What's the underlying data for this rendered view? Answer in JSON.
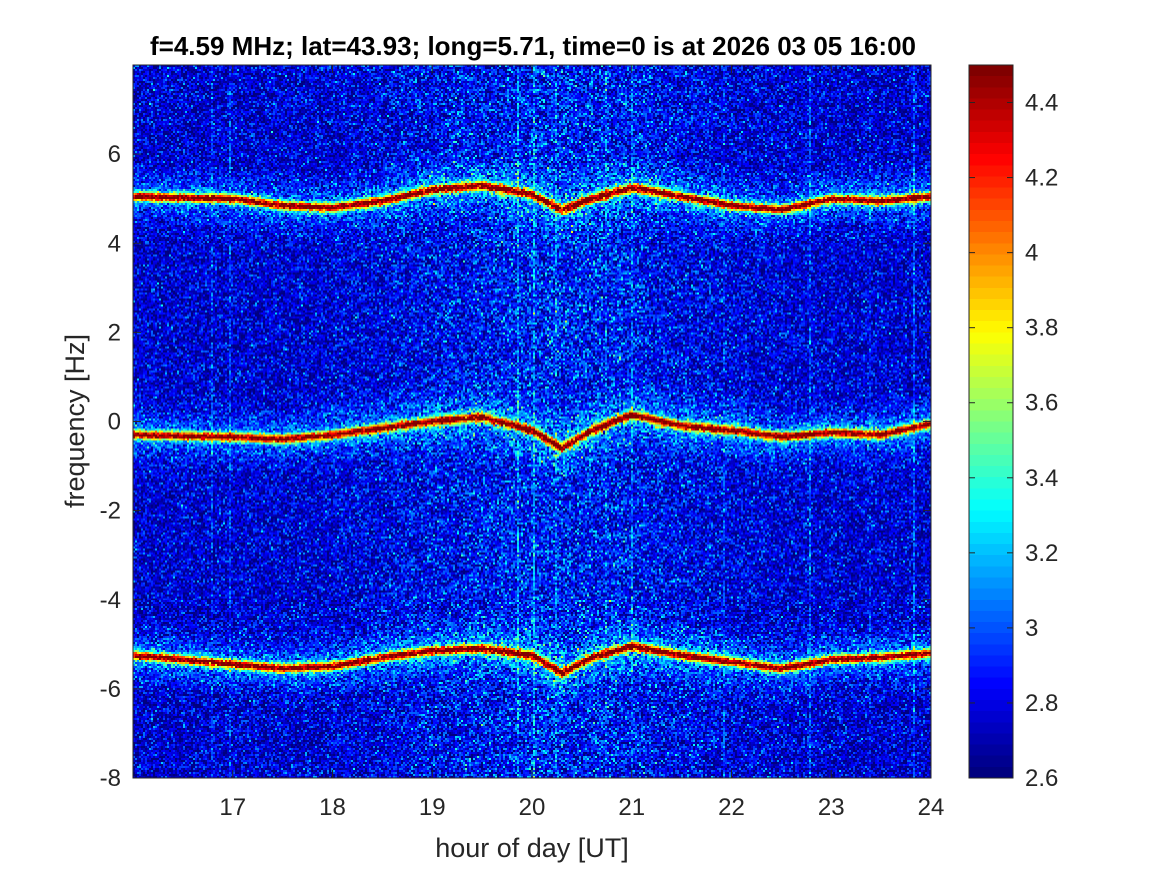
{
  "chart_data": {
    "type": "heatmap",
    "title": "f=4.59 MHz;  lat=43.93; long=5.71, time=0 is at 2026 03 05 16:00",
    "xlabel": "hour of day [UT]",
    "ylabel": "frequency [Hz]",
    "xlim": [
      16.0,
      24.0
    ],
    "ylim": [
      -8.0,
      8.0
    ],
    "xticks": [
      17,
      18,
      19,
      20,
      21,
      22,
      23,
      24
    ],
    "yticks": [
      -8,
      -6,
      -4,
      -2,
      0,
      2,
      4,
      6
    ],
    "xtick_labels": [
      "17",
      "18",
      "19",
      "20",
      "21",
      "22",
      "23",
      "24"
    ],
    "ytick_labels": [
      "-8",
      "-6",
      "-4",
      "-2",
      "0",
      "2",
      "4",
      "6"
    ],
    "colorbar": {
      "clim": [
        2.6,
        4.5
      ],
      "ticks": [
        2.6,
        2.8,
        3.0,
        3.2,
        3.4,
        3.6,
        3.8,
        4.0,
        4.2,
        4.4
      ],
      "tick_labels": [
        "2.6",
        "2.8",
        "3",
        "3.2",
        "3.4",
        "3.6",
        "3.8",
        "4",
        "4.2",
        "4.4"
      ],
      "colormap": "jet"
    },
    "background_level": 2.75,
    "bands": [
      {
        "name": "upper",
        "nominal_frequency": 5.0,
        "hours": [
          16.0,
          17.0,
          17.5,
          18.0,
          18.5,
          19.0,
          19.5,
          20.0,
          20.3,
          20.6,
          21.0,
          21.5,
          22.0,
          22.5,
          23.0,
          23.5,
          24.0
        ],
        "offset": [
          0.05,
          0.0,
          -0.15,
          -0.2,
          -0.05,
          0.2,
          0.3,
          0.1,
          -0.25,
          0.0,
          0.25,
          0.05,
          -0.15,
          -0.25,
          0.0,
          -0.05,
          0.05
        ]
      },
      {
        "name": "center",
        "nominal_frequency": 0.0,
        "hours": [
          16.0,
          17.0,
          17.5,
          18.0,
          18.5,
          19.0,
          19.5,
          20.0,
          20.3,
          20.6,
          21.0,
          21.5,
          22.0,
          22.5,
          23.0,
          23.5,
          24.0
        ],
        "offset": [
          -0.3,
          -0.35,
          -0.4,
          -0.3,
          -0.15,
          0.0,
          0.1,
          -0.2,
          -0.6,
          -0.2,
          0.15,
          -0.1,
          -0.2,
          -0.35,
          -0.25,
          -0.3,
          -0.05
        ]
      },
      {
        "name": "lower",
        "nominal_frequency": -5.0,
        "hours": [
          16.0,
          17.0,
          17.5,
          18.0,
          18.5,
          19.0,
          19.5,
          20.0,
          20.3,
          20.6,
          21.0,
          21.5,
          22.0,
          22.5,
          23.0,
          23.5,
          24.0
        ],
        "offset": [
          -0.25,
          -0.45,
          -0.55,
          -0.5,
          -0.3,
          -0.15,
          -0.1,
          -0.25,
          -0.65,
          -0.3,
          -0.05,
          -0.25,
          -0.4,
          -0.55,
          -0.35,
          -0.3,
          -0.2
        ]
      }
    ]
  }
}
